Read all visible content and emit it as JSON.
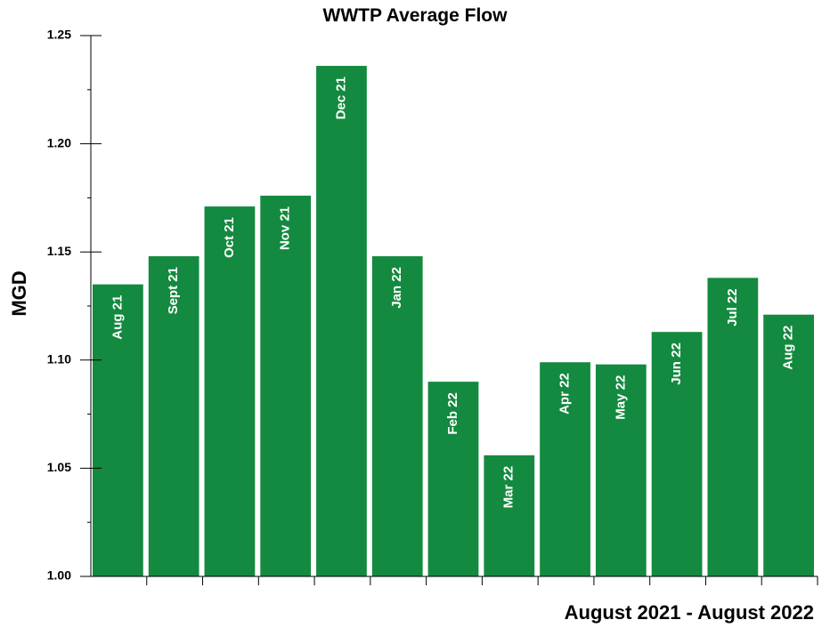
{
  "chart_data": {
    "type": "bar",
    "title": "WWTP Average Flow",
    "xlabel": "August 2021 - August 2022",
    "ylabel": "MGD",
    "ylim": [
      1.0,
      1.25
    ],
    "yticks": [
      "1.00",
      "1.05",
      "1.10",
      "1.15",
      "1.20",
      "1.25"
    ],
    "categories": [
      "Aug 21",
      "Sept 21",
      "Oct 21",
      "Nov 21",
      "Dec 21",
      "Jan 22",
      "Feb 22",
      "Mar 22",
      "Apr 22",
      "May 22",
      "Jun 22",
      "Jul 22",
      "Aug 22"
    ],
    "values": [
      1.135,
      1.148,
      1.171,
      1.176,
      1.236,
      1.148,
      1.09,
      1.056,
      1.099,
      1.098,
      1.113,
      1.138,
      1.121
    ],
    "bar_color": "#138a3f",
    "grid": false
  }
}
